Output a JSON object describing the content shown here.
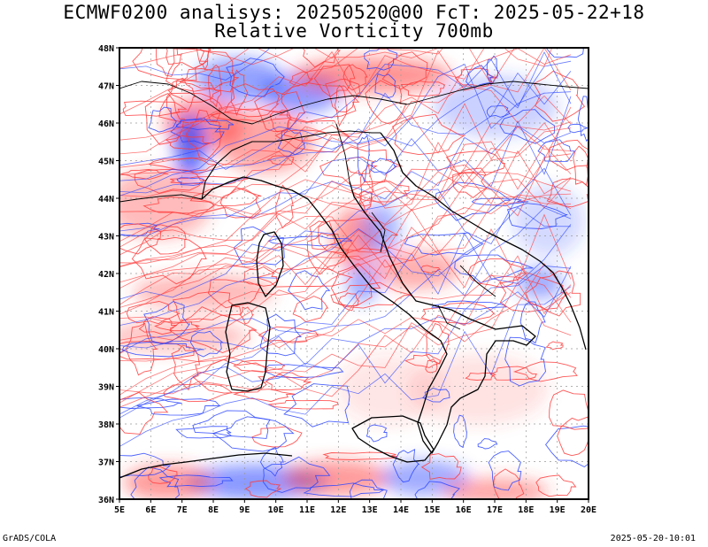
{
  "title_line1": "ECMWF0200 analisys: 20250520@00 FcT: 2025-05-22+18",
  "title_line2": "Relative Vorticity 700mb",
  "footer_left": "GrADS/COLA",
  "footer_right": "2025-05-20-10:01",
  "map": {
    "lon_range": [
      5,
      20
    ],
    "lat_range": [
      36,
      48
    ],
    "grid": "dotted",
    "lon_labels": [
      "5E",
      "6E",
      "7E",
      "8E",
      "9E",
      "10E",
      "11E",
      "12E",
      "13E",
      "14E",
      "15E",
      "16E",
      "17E",
      "18E",
      "19E",
      "20E"
    ],
    "lat_labels": [
      "36N",
      "37N",
      "38N",
      "39N",
      "40N",
      "41N",
      "42N",
      "43N",
      "44N",
      "45N",
      "46N",
      "47N",
      "48N"
    ],
    "colors": {
      "positive": "#ff3a3a",
      "negative": "#2a45ff",
      "coastline": "#000000",
      "grid": "#999999"
    }
  }
}
